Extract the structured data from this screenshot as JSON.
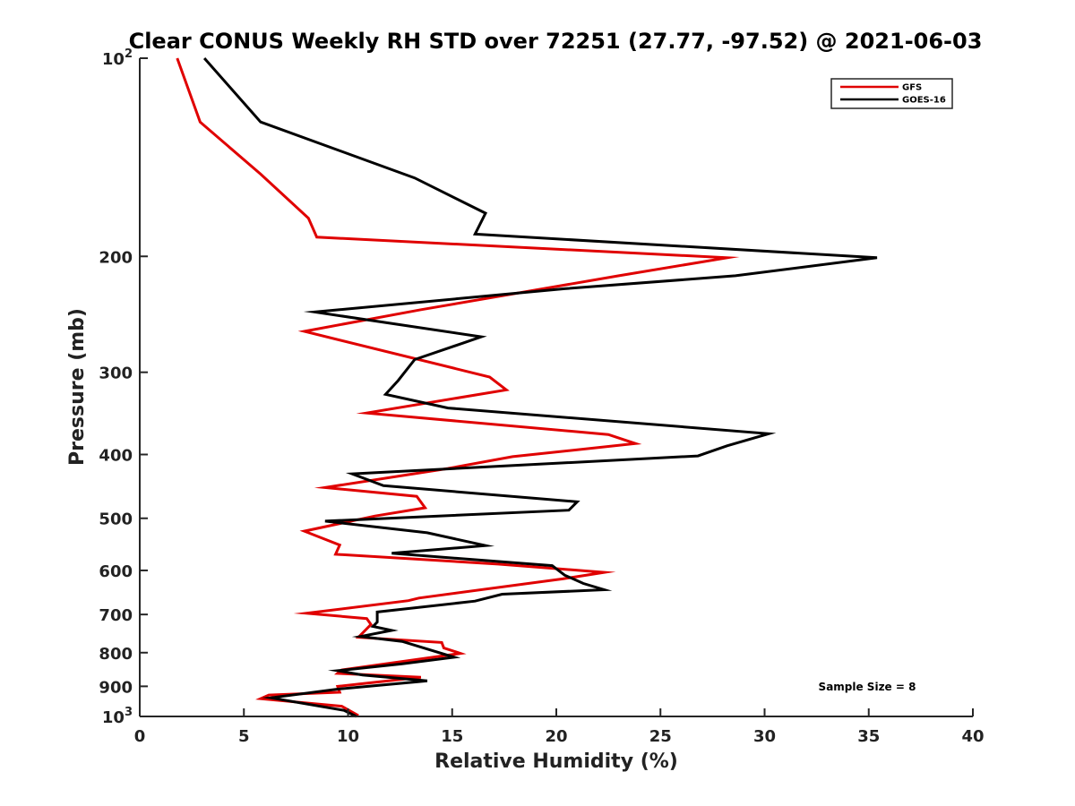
{
  "chart_data": {
    "type": "line",
    "title": "Clear CONUS Weekly RH STD over 72251 (27.77, -97.52) @ 2021-06-03",
    "xlabel": "Relative Humidity (%)",
    "ylabel": "Pressure (mb)",
    "xlim": [
      0,
      40
    ],
    "ylim": [
      100,
      1000
    ],
    "y_scale": "log",
    "y_reversed": true,
    "grid": false,
    "legend_position": "top-right",
    "x_ticks": [
      0,
      5,
      10,
      15,
      20,
      25,
      30,
      35,
      40
    ],
    "x_tick_labels": [
      "0",
      "5",
      "10",
      "15",
      "20",
      "25",
      "30",
      "35",
      "40"
    ],
    "y_ticks": [
      100,
      200,
      300,
      400,
      500,
      600,
      700,
      800,
      900,
      1000
    ],
    "y_tick_labels": [
      {
        "base": "10",
        "exp": "2"
      },
      {
        "base": "200",
        "exp": ""
      },
      {
        "base": "300",
        "exp": ""
      },
      {
        "base": "400",
        "exp": ""
      },
      {
        "base": "500",
        "exp": ""
      },
      {
        "base": "600",
        "exp": ""
      },
      {
        "base": "700",
        "exp": ""
      },
      {
        "base": "800",
        "exp": ""
      },
      {
        "base": "900",
        "exp": ""
      },
      {
        "base": "10",
        "exp": "3"
      }
    ],
    "annotation": "Sample Size = 8",
    "series": [
      {
        "name": "GFS",
        "color": "#e00000",
        "points": [
          [
            1.8,
            100
          ],
          [
            2.9,
            125
          ],
          [
            5.8,
            150
          ],
          [
            8.1,
            175
          ],
          [
            8.5,
            187
          ],
          [
            28.2,
            201
          ],
          [
            23.0,
            214
          ],
          [
            13.5,
            241
          ],
          [
            7.9,
            260
          ],
          [
            16.8,
            305
          ],
          [
            17.6,
            319
          ],
          [
            10.9,
            346
          ],
          [
            22.5,
            373
          ],
          [
            23.8,
            385
          ],
          [
            17.9,
            403
          ],
          [
            14.8,
            420
          ],
          [
            8.9,
            449
          ],
          [
            13.3,
            463
          ],
          [
            13.7,
            482
          ],
          [
            11.3,
            496
          ],
          [
            7.9,
            523
          ],
          [
            9.6,
            549
          ],
          [
            9.4,
            567
          ],
          [
            17.2,
            587
          ],
          [
            22.3,
            604
          ],
          [
            20.3,
            618
          ],
          [
            13.4,
            661
          ],
          [
            12.9,
            667
          ],
          [
            8.0,
            697
          ],
          [
            10.9,
            710
          ],
          [
            11.1,
            725
          ],
          [
            10.5,
            758
          ],
          [
            14.5,
            772
          ],
          [
            14.6,
            787
          ],
          [
            15.4,
            802
          ],
          [
            9.7,
            850
          ],
          [
            9.5,
            860
          ],
          [
            13.5,
            872
          ],
          [
            9.5,
            900
          ],
          [
            9.6,
            919
          ],
          [
            6.2,
            928
          ],
          [
            5.8,
            940
          ],
          [
            9.7,
            965
          ],
          [
            10.5,
            997
          ]
        ]
      },
      {
        "name": "GOES-16",
        "color": "#000000",
        "points": [
          [
            3.1,
            100
          ],
          [
            5.8,
            125
          ],
          [
            13.2,
            152
          ],
          [
            16.6,
            172
          ],
          [
            16.1,
            185
          ],
          [
            35.4,
            201
          ],
          [
            28.6,
            214
          ],
          [
            20.4,
            224
          ],
          [
            8.4,
            243
          ],
          [
            16.4,
            265
          ],
          [
            13.2,
            287
          ],
          [
            12.4,
            309
          ],
          [
            11.8,
            324
          ],
          [
            14.8,
            340
          ],
          [
            30.2,
            372
          ],
          [
            28.2,
            388
          ],
          [
            26.8,
            402
          ],
          [
            10.2,
            428
          ],
          [
            11.7,
            446
          ],
          [
            21.0,
            472
          ],
          [
            20.6,
            486
          ],
          [
            8.9,
            505
          ],
          [
            13.8,
            526
          ],
          [
            16.6,
            550
          ],
          [
            12.1,
            565
          ],
          [
            19.8,
            590
          ],
          [
            20.4,
            610
          ],
          [
            21.3,
            628
          ],
          [
            22.3,
            642
          ],
          [
            17.4,
            652
          ],
          [
            16.1,
            668
          ],
          [
            11.4,
            694
          ],
          [
            11.4,
            719
          ],
          [
            11.2,
            730
          ],
          [
            12.1,
            740
          ],
          [
            10.6,
            756
          ],
          [
            12.6,
            769
          ],
          [
            15.1,
            813
          ],
          [
            12.6,
            832
          ],
          [
            9.5,
            852
          ],
          [
            10.7,
            865
          ],
          [
            13.8,
            883
          ],
          [
            9.5,
            909
          ],
          [
            6.3,
            937
          ],
          [
            9.8,
            979
          ],
          [
            10.4,
            1000
          ]
        ]
      }
    ]
  }
}
